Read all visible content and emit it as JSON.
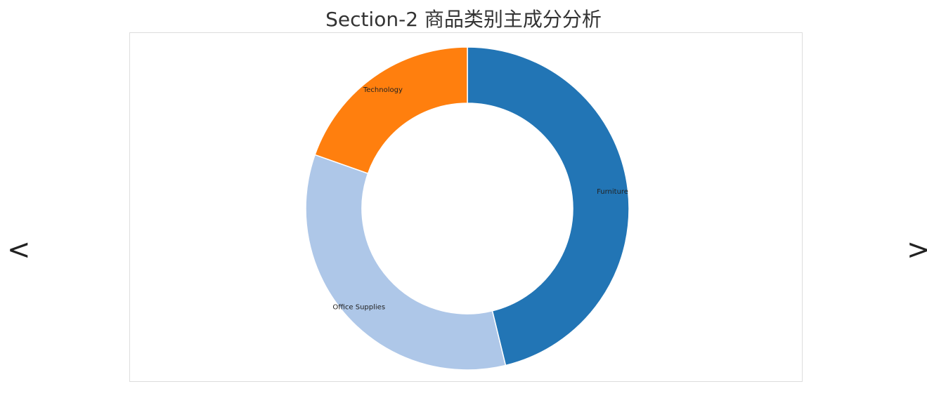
{
  "page": {
    "title": "Section-2 商品类别主成分分析",
    "prev_label": "<",
    "next_label": ">"
  },
  "chart_data": {
    "type": "pie",
    "variant": "donut",
    "categories": [
      "Furniture",
      "Office Supplies",
      "Technology"
    ],
    "values": [
      46.2,
      34.2,
      19.6
    ],
    "colors": [
      "#2275b5",
      "#aec7e8",
      "#ff7f0e"
    ],
    "legend": "none"
  }
}
